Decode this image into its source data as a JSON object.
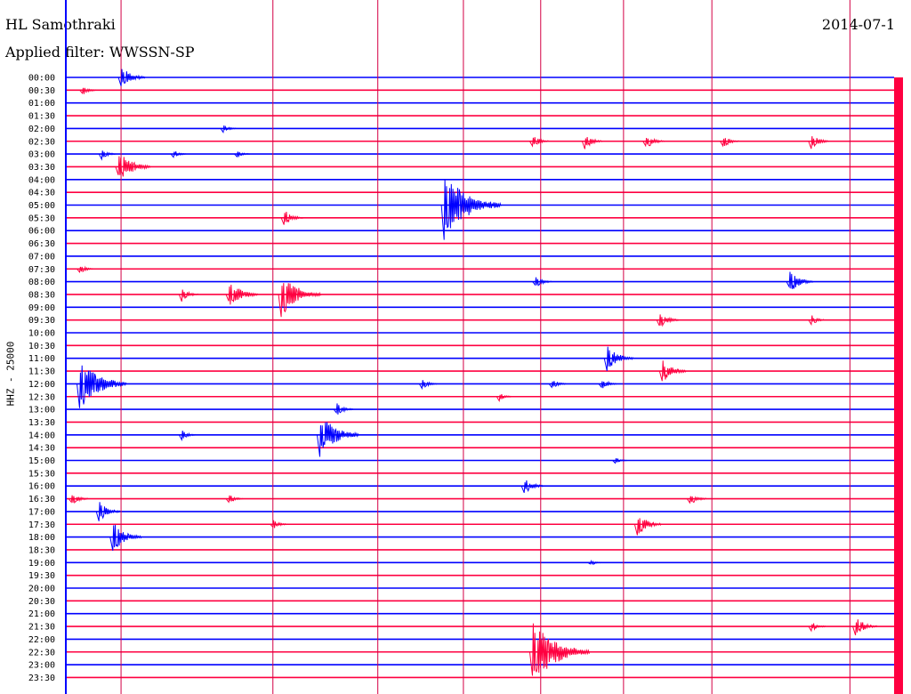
{
  "header": {
    "station": "HL Samothraki",
    "filter": "Applied filter: WWSSN-SP",
    "date": "2014-07-1"
  },
  "axis": {
    "scale_label": "HHZ - 25000"
  },
  "colors": {
    "trace_a": "#0000ff",
    "trace_b": "#ff0040",
    "marker": "#d40045",
    "background": "#ffffff",
    "text": "#000000"
  },
  "chart_data": {
    "type": "line",
    "title": "",
    "xlabel": "",
    "ylabel": "HHZ - 25000",
    "row_labels": [
      "00:00",
      "00:30",
      "01:00",
      "01:30",
      "02:00",
      "02:30",
      "03:00",
      "03:30",
      "04:00",
      "04:30",
      "05:00",
      "05:30",
      "06:00",
      "06:30",
      "07:00",
      "07:30",
      "08:00",
      "08:30",
      "09:00",
      "09:30",
      "10:00",
      "10:30",
      "11:00",
      "11:30",
      "12:00",
      "12:30",
      "13:00",
      "13:30",
      "14:00",
      "14:30",
      "15:00",
      "15:30",
      "16:00",
      "16:30",
      "17:00",
      "17:30",
      "18:00",
      "18:30",
      "19:00",
      "19:30",
      "20:00",
      "20:30",
      "21:00",
      "21:30",
      "22:00",
      "22:30",
      "23:00",
      "23:30"
    ],
    "minute_markers": [
      0,
      2,
      7.5,
      11.3,
      14.4,
      17.2,
      20.2,
      23.4,
      28.4
    ],
    "events": [
      {
        "row": 0,
        "minute": 2.0,
        "amp": 14
      },
      {
        "row": 1,
        "minute": 0.6,
        "amp": 6
      },
      {
        "row": 4,
        "minute": 5.7,
        "amp": 5
      },
      {
        "row": 5,
        "minute": 16.9,
        "amp": 8
      },
      {
        "row": 5,
        "minute": 18.8,
        "amp": 9
      },
      {
        "row": 5,
        "minute": 21.0,
        "amp": 10
      },
      {
        "row": 5,
        "minute": 23.8,
        "amp": 8
      },
      {
        "row": 5,
        "minute": 27.0,
        "amp": 9
      },
      {
        "row": 6,
        "minute": 1.3,
        "amp": 6
      },
      {
        "row": 6,
        "minute": 3.9,
        "amp": 5
      },
      {
        "row": 6,
        "minute": 6.2,
        "amp": 5
      },
      {
        "row": 7,
        "minute": 1.9,
        "amp": 20
      },
      {
        "row": 10,
        "minute": 13.7,
        "amp": 40
      },
      {
        "row": 11,
        "minute": 7.9,
        "amp": 10
      },
      {
        "row": 15,
        "minute": 0.5,
        "amp": 6
      },
      {
        "row": 16,
        "minute": 17.0,
        "amp": 8
      },
      {
        "row": 16,
        "minute": 26.2,
        "amp": 14
      },
      {
        "row": 17,
        "minute": 4.2,
        "amp": 8
      },
      {
        "row": 17,
        "minute": 5.9,
        "amp": 18
      },
      {
        "row": 17,
        "minute": 7.8,
        "amp": 26
      },
      {
        "row": 19,
        "minute": 21.5,
        "amp": 10
      },
      {
        "row": 19,
        "minute": 27.0,
        "amp": 6
      },
      {
        "row": 22,
        "minute": 19.6,
        "amp": 16
      },
      {
        "row": 23,
        "minute": 21.6,
        "amp": 14
      },
      {
        "row": 24,
        "minute": 0.5,
        "amp": 32
      },
      {
        "row": 24,
        "minute": 12.9,
        "amp": 7
      },
      {
        "row": 24,
        "minute": 17.6,
        "amp": 6
      },
      {
        "row": 24,
        "minute": 19.4,
        "amp": 7
      },
      {
        "row": 25,
        "minute": 15.7,
        "amp": 5
      },
      {
        "row": 26,
        "minute": 9.8,
        "amp": 8
      },
      {
        "row": 28,
        "minute": 4.2,
        "amp": 6
      },
      {
        "row": 28,
        "minute": 9.2,
        "amp": 26
      },
      {
        "row": 30,
        "minute": 19.9,
        "amp": 4
      },
      {
        "row": 32,
        "minute": 16.6,
        "amp": 10
      },
      {
        "row": 33,
        "minute": 0.2,
        "amp": 8
      },
      {
        "row": 33,
        "minute": 5.9,
        "amp": 6
      },
      {
        "row": 33,
        "minute": 22.6,
        "amp": 8
      },
      {
        "row": 34,
        "minute": 1.2,
        "amp": 12
      },
      {
        "row": 35,
        "minute": 7.5,
        "amp": 6
      },
      {
        "row": 35,
        "minute": 20.7,
        "amp": 14
      },
      {
        "row": 36,
        "minute": 1.7,
        "amp": 18
      },
      {
        "row": 38,
        "minute": 19.0,
        "amp": 4
      },
      {
        "row": 43,
        "minute": 27.0,
        "amp": 6
      },
      {
        "row": 43,
        "minute": 28.6,
        "amp": 12
      },
      {
        "row": 45,
        "minute": 16.9,
        "amp": 40
      }
    ]
  }
}
